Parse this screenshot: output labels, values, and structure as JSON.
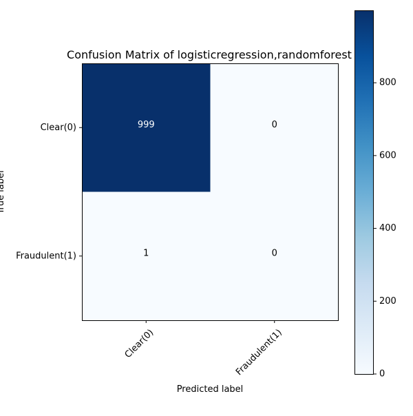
{
  "chart_data": {
    "type": "heatmap",
    "title": "Confusion Matrix of logisticregression,randomforest",
    "xlabel": "Predicted label",
    "ylabel": "True label",
    "x_categories": [
      "Clear(0)",
      "Fraudulent(1)"
    ],
    "y_categories": [
      "Clear(0)",
      "Fraudulent(1)"
    ],
    "matrix": [
      [
        999,
        0
      ],
      [
        1,
        0
      ]
    ],
    "cell_labels": [
      [
        "999",
        "0"
      ],
      [
        "1",
        "0"
      ]
    ],
    "colormap": "Blues",
    "color_range": [
      0,
      999
    ],
    "colorbar": {
      "ticks": [
        0,
        200,
        400,
        600,
        800
      ],
      "tick_labels": [
        "0",
        "200",
        "400",
        "600",
        "800"
      ]
    },
    "colors": {
      "low": "#f7fbff",
      "high": "#08306b",
      "text_on_dark": "#ffffff",
      "text_on_light": "#000000"
    }
  }
}
